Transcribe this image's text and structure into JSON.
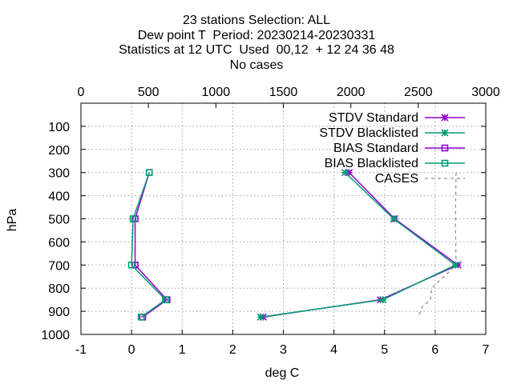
{
  "title_lines": [
    "23 stations Selection: ALL",
    "Dew point T  Period: 20230214-20230331",
    "Statistics at 12 UTC  Used  00,12  + 12 24 36 48",
    "No cases"
  ],
  "chart_data": {
    "type": "line",
    "xlabel": "deg C",
    "ylabel": "hPa",
    "xlim": [
      -1,
      7
    ],
    "ylim": [
      1000,
      0
    ],
    "x_ticks": [
      "-1",
      "0",
      "1",
      "2",
      "3",
      "4",
      "5",
      "6",
      "7"
    ],
    "y_ticks": [
      "100",
      "200",
      "300",
      "400",
      "500",
      "600",
      "700",
      "800",
      "900",
      "1000"
    ],
    "x2_label": "",
    "x2lim": [
      0,
      3000
    ],
    "x2_ticks": [
      "0",
      "500",
      "1000",
      "1500",
      "2000",
      "2500",
      "3000"
    ],
    "grid": true,
    "legend_position": "top-right",
    "series": [
      {
        "name": "STDV Standard",
        "color": "#9400d3",
        "marker": "star",
        "axis": "x1",
        "points": [
          [
            4.3,
            300
          ],
          [
            5.2,
            500
          ],
          [
            6.45,
            700
          ],
          [
            4.92,
            850
          ],
          [
            2.6,
            925
          ]
        ]
      },
      {
        "name": "STDV Blacklisted",
        "color": "#009e73",
        "marker": "star",
        "axis": "x1",
        "points": [
          [
            4.22,
            300
          ],
          [
            5.18,
            500
          ],
          [
            6.4,
            700
          ],
          [
            4.97,
            850
          ],
          [
            2.55,
            925
          ]
        ]
      },
      {
        "name": "BIAS Standard",
        "color": "#9400d3",
        "marker": "square",
        "axis": "x1",
        "points": [
          [
            0.35,
            300
          ],
          [
            0.07,
            500
          ],
          [
            0.07,
            700
          ],
          [
            0.7,
            850
          ],
          [
            0.22,
            925
          ]
        ]
      },
      {
        "name": "BIAS Blacklisted",
        "color": "#009e73",
        "marker": "square",
        "axis": "x1",
        "points": [
          [
            0.35,
            300
          ],
          [
            0.03,
            500
          ],
          [
            0.0,
            700
          ],
          [
            0.67,
            850
          ],
          [
            0.19,
            925
          ]
        ]
      },
      {
        "name": "CASES",
        "color": "#909090",
        "marker": "none",
        "dash": true,
        "axis": "x2",
        "points": [
          [
            2780,
            300
          ],
          [
            2775,
            500
          ],
          [
            2780,
            700
          ],
          [
            2600,
            800
          ],
          [
            2590,
            850
          ],
          [
            2530,
            880
          ],
          [
            2500,
            925
          ]
        ]
      }
    ]
  }
}
